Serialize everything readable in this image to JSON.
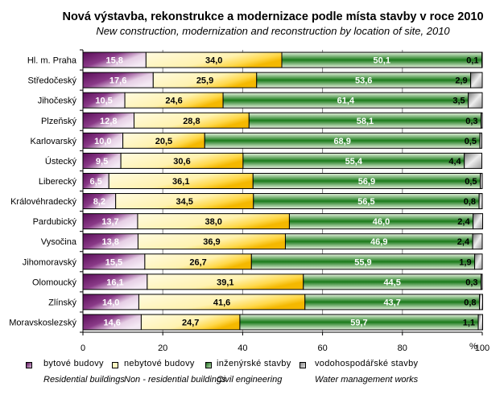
{
  "title": "Nová výstavba,  rekonstrukce  a modernizace  podle místa stavby  v roce 2010",
  "subtitle": "New construction, modernization  and reconstruction by location of site, 2010",
  "chart_data": {
    "type": "bar",
    "orientation": "horizontal",
    "stacked": "percent",
    "title": "Nová výstavba,  rekonstrukce  a modernizace  podle místa stavby  v roce 2010",
    "subtitle": "New construction, modernization  and reconstruction by location of site, 2010",
    "xlabel": "%",
    "ylabel": "",
    "xlim": [
      0,
      100
    ],
    "xticks": [
      "0",
      "20",
      "40",
      "60",
      "80",
      "100"
    ],
    "grid": "vertical",
    "legend_position": "bottom",
    "categories": [
      "Hl. m. Praha",
      "Středočeský",
      "Jihočeský",
      "Plzeňský",
      "Karlovarský",
      "Ústecký",
      "Liberecký",
      "Královéhradecký",
      "Pardubický",
      "Vysočina",
      "Jihomoravský",
      "Olomoucký",
      "Zlínský",
      "Moravskoslezský"
    ],
    "series": [
      {
        "name": "bytové budovy",
        "name_en": "Residential buildings",
        "color": "#7a1f78",
        "values": [
          15.8,
          17.6,
          10.5,
          12.8,
          10.0,
          9.5,
          6.5,
          8.2,
          13.7,
          13.8,
          15.5,
          16.1,
          14.0,
          14.6
        ],
        "labels": [
          "15,8",
          "17,6",
          "10,5",
          "12,8",
          "10,0",
          "9,5",
          "6,5",
          "8,2",
          "13,7",
          "13,8",
          "15,5",
          "16,1",
          "14,0",
          "14,6"
        ]
      },
      {
        "name": "nebytové budovy",
        "name_en": "Non - residential buildings",
        "color": "#f5c518",
        "values": [
          34.0,
          25.9,
          24.6,
          28.8,
          20.5,
          30.6,
          36.1,
          34.5,
          38.0,
          36.9,
          26.7,
          39.1,
          41.6,
          24.7
        ],
        "labels": [
          "34,0",
          "25,9",
          "24,6",
          "28,8",
          "20,5",
          "30,6",
          "36,1",
          "34,5",
          "38,0",
          "36,9",
          "26,7",
          "39,1",
          "41,6",
          "24,7"
        ]
      },
      {
        "name": "inženýrské stavby",
        "name_en": "Civil engineering",
        "color": "#1e7a1e",
        "values": [
          50.1,
          53.6,
          61.4,
          58.1,
          68.9,
          55.4,
          56.9,
          56.5,
          46.0,
          46.9,
          55.9,
          44.5,
          43.7,
          59.7
        ],
        "labels": [
          "50,1",
          "53,6",
          "61,4",
          "58,1",
          "68,9",
          "55,4",
          "56,9",
          "56,5",
          "46,0",
          "46,9",
          "55,9",
          "44,5",
          "43,7",
          "59,7"
        ]
      },
      {
        "name": "vodohospodářské stavby",
        "name_en": "Water management works",
        "color": "#a0a0a0",
        "values": [
          0.1,
          2.9,
          3.5,
          0.3,
          0.5,
          4.4,
          0.5,
          0.8,
          2.4,
          2.4,
          1.9,
          0.3,
          0.8,
          1.1
        ],
        "labels": [
          "0,1",
          "2,9",
          "3,5",
          "0,3",
          "0,5",
          "4,4",
          "0,5",
          "0,8",
          "2,4",
          "2,4",
          "1,9",
          "0,3",
          "0,8",
          "1,1"
        ]
      }
    ]
  }
}
